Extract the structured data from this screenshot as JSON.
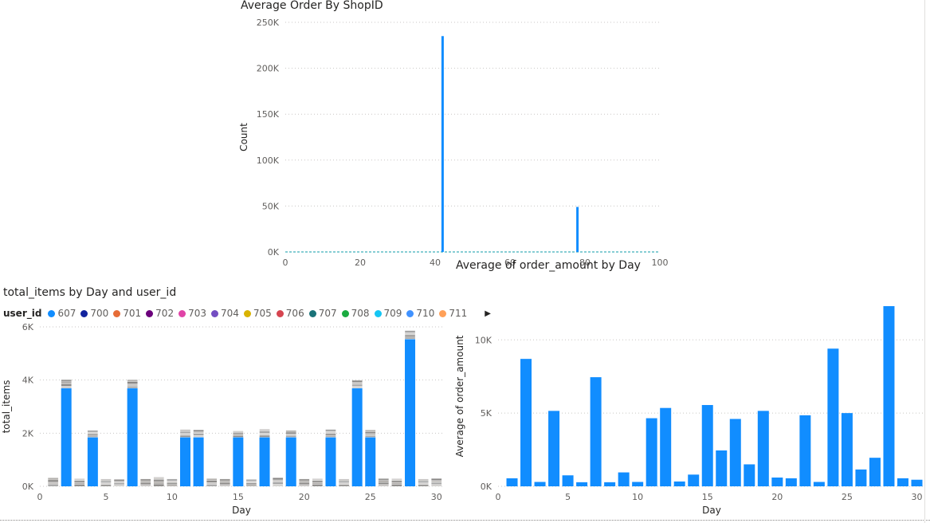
{
  "charts": {
    "shop": {
      "title": "Average Order By ShopID"
    },
    "items": {
      "title": "total_items by Day and user_id"
    },
    "amount": {
      "title": "Average of order_amount by Day"
    }
  },
  "legend": {
    "title": "user_id",
    "items": [
      {
        "label": "607",
        "color": "#118DFF"
      },
      {
        "label": "700",
        "color": "#12239E"
      },
      {
        "label": "701",
        "color": "#E66C37"
      },
      {
        "label": "702",
        "color": "#6B007B"
      },
      {
        "label": "703",
        "color": "#E044A7"
      },
      {
        "label": "704",
        "color": "#744EC2"
      },
      {
        "label": "705",
        "color": "#D9B300"
      },
      {
        "label": "706",
        "color": "#D64550"
      },
      {
        "label": "707",
        "color": "#197278"
      },
      {
        "label": "708",
        "color": "#1AAB40"
      },
      {
        "label": "709",
        "color": "#15C6F4"
      },
      {
        "label": "710",
        "color": "#4092FF"
      },
      {
        "label": "711",
        "color": "#FFA058"
      }
    ]
  },
  "chart_data": [
    {
      "type": "bar",
      "title": "Average Order By ShopID",
      "xlabel": "",
      "ylabel": "Count",
      "xlim": [
        0,
        100
      ],
      "ylim": [
        0,
        250000
      ],
      "xticks": [
        "0",
        "20",
        "40",
        "60",
        "80",
        "100"
      ],
      "yticks": [
        "0K",
        "50K",
        "100K",
        "150K",
        "200K",
        "250K"
      ],
      "grid": true,
      "color": "#118DFF",
      "points": [
        {
          "x": 42,
          "y": 235000
        },
        {
          "x": 78,
          "y": 49000
        }
      ]
    },
    {
      "type": "bar",
      "stacked": true,
      "title": "total_items by Day and user_id",
      "xlabel": "Day",
      "ylabel": "total_items",
      "xlim": [
        0,
        30.5
      ],
      "ylim": [
        0,
        6500
      ],
      "xticks": [
        "0",
        "5",
        "10",
        "15",
        "20",
        "25",
        "30"
      ],
      "yticks": [
        "0K",
        "2K",
        "4K",
        "6K"
      ],
      "grid": true,
      "legend_position": "top-left",
      "series_607": {
        "name": "607",
        "color": "#118DFF",
        "days": [
          2,
          4,
          7,
          11,
          12,
          15,
          17,
          19,
          22,
          24,
          25,
          28
        ],
        "values": [
          4000,
          2000,
          4000,
          2000,
          2000,
          2000,
          2000,
          2000,
          2000,
          4000,
          2000,
          6000
        ]
      },
      "totals": {
        "days": [
          1,
          2,
          3,
          4,
          5,
          6,
          7,
          8,
          9,
          10,
          11,
          12,
          13,
          14,
          15,
          16,
          17,
          18,
          19,
          20,
          21,
          22,
          23,
          24,
          25,
          26,
          27,
          28,
          29,
          30
        ],
        "values": [
          350,
          4350,
          320,
          2280,
          300,
          280,
          4350,
          300,
          380,
          300,
          2320,
          2300,
          320,
          300,
          2260,
          280,
          2330,
          350,
          2280,
          300,
          320,
          2320,
          300,
          4320,
          2300,
          320,
          320,
          6350,
          300,
          320
        ]
      }
    },
    {
      "type": "bar",
      "title": "Average of order_amount by Day",
      "xlabel": "Day",
      "ylabel": "Average of order_amount",
      "xlim": [
        0,
        30.6
      ],
      "ylim": [
        0,
        12300
      ],
      "xticks": [
        "0",
        "5",
        "10",
        "15",
        "20",
        "25",
        "30"
      ],
      "yticks": [
        "0K",
        "5K",
        "10K"
      ],
      "grid": true,
      "color": "#118DFF",
      "days": [
        1,
        2,
        3,
        4,
        5,
        6,
        7,
        8,
        9,
        10,
        11,
        12,
        13,
        14,
        15,
        16,
        17,
        18,
        19,
        20,
        21,
        22,
        23,
        24,
        25,
        26,
        27,
        28,
        29,
        30
      ],
      "values": [
        550,
        8700,
        300,
        5150,
        750,
        280,
        7450,
        280,
        950,
        300,
        4650,
        5350,
        330,
        800,
        5550,
        2450,
        4600,
        1500,
        5150,
        600,
        550,
        4850,
        300,
        9400,
        5000,
        1150,
        1950,
        12300,
        550,
        450
      ]
    }
  ]
}
